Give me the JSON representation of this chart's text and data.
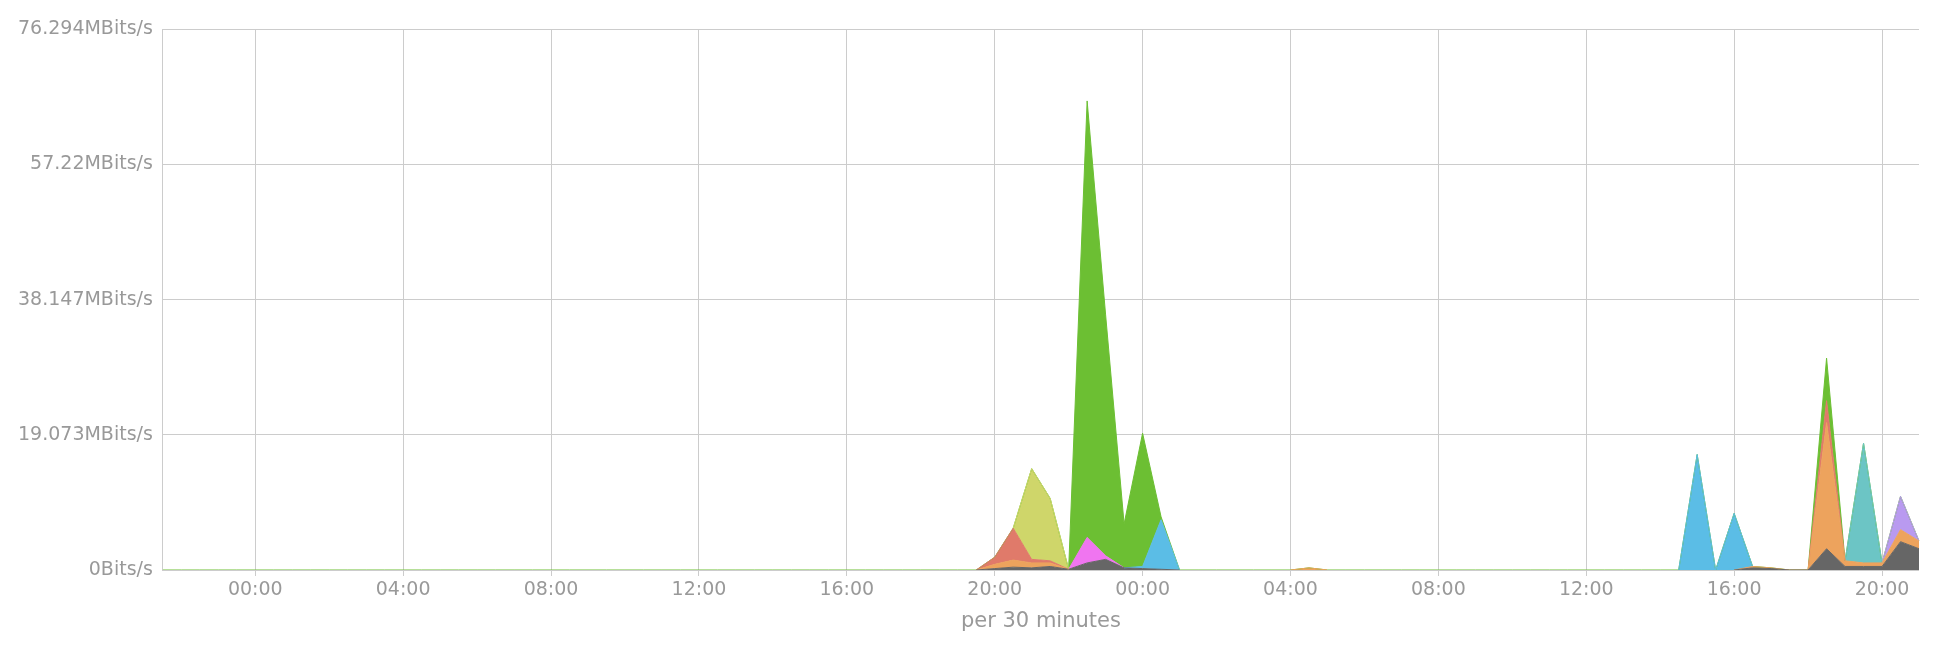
{
  "chart_data": {
    "type": "area",
    "stacked": true,
    "xlabel": "per 30 minutes",
    "categories": [
      null,
      null,
      null,
      null,
      null,
      "00:00",
      null,
      null,
      null,
      null,
      null,
      null,
      null,
      "04:00",
      null,
      null,
      null,
      null,
      null,
      null,
      null,
      "08:00",
      null,
      null,
      null,
      null,
      null,
      null,
      null,
      "12:00",
      null,
      null,
      null,
      null,
      null,
      null,
      null,
      "16:00",
      null,
      null,
      null,
      null,
      null,
      null,
      null,
      "20:00",
      null,
      null,
      null,
      null,
      null,
      null,
      null,
      "00:00",
      null,
      null,
      null,
      null,
      null,
      null,
      null,
      "04:00",
      null,
      null,
      null,
      null,
      null,
      null,
      null,
      "08:00",
      null,
      null,
      null,
      null,
      null,
      null,
      null,
      "12:00",
      null,
      null,
      null,
      null,
      null,
      null,
      null,
      "16:00",
      null,
      null,
      null,
      null,
      null,
      null,
      null,
      "20:00",
      null,
      null
    ],
    "series": [
      {
        "color": "#666666",
        "values": [
          null,
          null,
          null,
          null,
          null,
          null,
          null,
          null,
          null,
          null,
          null,
          null,
          null,
          null,
          null,
          null,
          null,
          null,
          null,
          null,
          null,
          null,
          null,
          null,
          null,
          null,
          null,
          null,
          null,
          null,
          null,
          null,
          null,
          null,
          null,
          null,
          null,
          null,
          null,
          null,
          null,
          null,
          null,
          null,
          0,
          0.2,
          0.4,
          0.3,
          0.5,
          0.1,
          1.0,
          1.5,
          0.3,
          0.2,
          0.1,
          0,
          null,
          null,
          null,
          null,
          null,
          null,
          null,
          null,
          null,
          null,
          null,
          null,
          null,
          null,
          null,
          null,
          null,
          null,
          null,
          null,
          null,
          null,
          null,
          null,
          null,
          null,
          null,
          null,
          null,
          0,
          0.3,
          0.2,
          0,
          0,
          3.0,
          0.5,
          0.5,
          0.5,
          4.0,
          3.0
        ]
      },
      {
        "color": "#eda35d",
        "values": [
          null,
          null,
          null,
          null,
          null,
          null,
          null,
          null,
          null,
          null,
          null,
          null,
          null,
          null,
          null,
          null,
          null,
          null,
          null,
          null,
          null,
          null,
          null,
          null,
          null,
          null,
          null,
          null,
          null,
          null,
          null,
          null,
          null,
          null,
          null,
          null,
          null,
          null,
          null,
          null,
          null,
          null,
          null,
          null,
          0,
          0.6,
          1.0,
          0.7,
          0.5,
          0,
          null,
          null,
          null,
          null,
          null,
          null,
          null,
          null,
          null,
          null,
          null,
          0,
          0.3,
          0,
          null,
          null,
          null,
          null,
          null,
          null,
          null,
          null,
          null,
          null,
          null,
          null,
          null,
          null,
          null,
          null,
          null,
          null,
          null,
          null,
          null,
          0,
          0.2,
          0.1,
          0,
          0,
          17.8,
          0.8,
          0.5,
          0.5,
          1.7,
          1.1
        ]
      },
      {
        "color": "#e07a6a",
        "values": [
          null,
          null,
          null,
          null,
          null,
          null,
          null,
          null,
          null,
          null,
          null,
          null,
          null,
          null,
          null,
          null,
          null,
          null,
          null,
          null,
          null,
          null,
          null,
          null,
          null,
          null,
          null,
          null,
          null,
          null,
          null,
          null,
          null,
          null,
          null,
          null,
          null,
          null,
          null,
          null,
          null,
          null,
          null,
          null,
          0,
          1.0,
          4.5,
          0.5,
          0.3,
          0,
          null,
          null,
          null,
          null,
          null,
          null,
          null,
          null,
          null,
          null,
          null,
          null,
          null,
          null,
          null,
          null,
          null,
          null,
          null,
          null,
          null,
          null,
          null,
          null,
          null,
          null,
          null,
          null,
          null,
          null,
          null,
          null,
          null,
          null,
          null,
          null,
          null,
          null,
          null,
          0,
          3.1,
          0,
          null,
          null,
          null,
          null
        ]
      },
      {
        "color": "#cfd66a",
        "values": [
          null,
          null,
          null,
          null,
          null,
          null,
          null,
          null,
          null,
          null,
          null,
          null,
          null,
          null,
          null,
          null,
          null,
          null,
          null,
          null,
          null,
          null,
          null,
          null,
          null,
          null,
          null,
          null,
          null,
          null,
          null,
          null,
          null,
          null,
          null,
          null,
          null,
          null,
          null,
          null,
          null,
          null,
          null,
          null,
          null,
          null,
          0,
          12.8,
          8.8,
          0,
          null,
          null,
          null,
          null,
          null,
          null,
          null,
          null,
          null,
          null,
          null,
          null,
          null,
          null,
          null,
          null,
          null,
          null,
          null,
          null,
          null,
          null,
          null,
          null,
          null,
          null,
          null,
          null,
          null,
          null,
          null,
          null,
          null,
          null,
          null,
          null,
          null,
          null,
          null,
          null,
          null,
          null,
          null,
          null,
          null,
          null
        ]
      },
      {
        "color": "#f075f0",
        "values": [
          null,
          null,
          null,
          null,
          null,
          null,
          null,
          null,
          null,
          null,
          null,
          null,
          null,
          null,
          null,
          null,
          null,
          null,
          null,
          null,
          null,
          null,
          null,
          null,
          null,
          null,
          null,
          null,
          null,
          null,
          null,
          null,
          null,
          null,
          null,
          null,
          null,
          null,
          null,
          null,
          null,
          null,
          null,
          null,
          null,
          null,
          null,
          null,
          null,
          0,
          3.6,
          0.5,
          0,
          null,
          null,
          null,
          null,
          null,
          null,
          null,
          null,
          null,
          null,
          null,
          null,
          null,
          null,
          null,
          null,
          null,
          null,
          null,
          null,
          null,
          null,
          null,
          null,
          null,
          null,
          null,
          null,
          null,
          null,
          null,
          null,
          null,
          null,
          null,
          null,
          null,
          null,
          null,
          null,
          null,
          null,
          null
        ]
      },
      {
        "color": "#5bbde6",
        "values": [
          null,
          null,
          null,
          null,
          null,
          null,
          null,
          null,
          null,
          null,
          null,
          null,
          null,
          null,
          null,
          null,
          null,
          null,
          null,
          null,
          null,
          null,
          null,
          null,
          null,
          null,
          null,
          null,
          null,
          null,
          null,
          null,
          null,
          null,
          null,
          null,
          null,
          null,
          null,
          null,
          null,
          null,
          null,
          null,
          null,
          null,
          null,
          null,
          null,
          null,
          null,
          null,
          0,
          0.3,
          7.0,
          0,
          null,
          null,
          null,
          null,
          null,
          null,
          null,
          null,
          null,
          null,
          null,
          null,
          null,
          null,
          null,
          null,
          null,
          null,
          null,
          null,
          null,
          null,
          null,
          null,
          null,
          null,
          0,
          16.3,
          0,
          8.0,
          0,
          null,
          null,
          null,
          null,
          null,
          null,
          null,
          null,
          null
        ]
      },
      {
        "color": "#6cc5c5",
        "values": [
          null,
          null,
          null,
          null,
          null,
          null,
          null,
          null,
          null,
          null,
          null,
          null,
          null,
          null,
          null,
          null,
          null,
          null,
          null,
          null,
          null,
          null,
          null,
          null,
          null,
          null,
          null,
          null,
          null,
          null,
          null,
          null,
          null,
          null,
          null,
          null,
          null,
          null,
          null,
          null,
          null,
          null,
          null,
          null,
          null,
          null,
          null,
          null,
          null,
          null,
          null,
          null,
          null,
          null,
          null,
          null,
          null,
          null,
          null,
          null,
          null,
          null,
          null,
          null,
          null,
          null,
          null,
          null,
          null,
          null,
          null,
          null,
          null,
          null,
          null,
          null,
          null,
          null,
          null,
          null,
          null,
          null,
          null,
          null,
          null,
          null,
          null,
          null,
          null,
          null,
          null,
          0,
          16.9,
          0,
          null,
          null
        ]
      },
      {
        "color": "#b99af0",
        "values": [
          null,
          null,
          null,
          null,
          null,
          null,
          null,
          null,
          null,
          null,
          null,
          null,
          null,
          null,
          null,
          null,
          null,
          null,
          null,
          null,
          null,
          null,
          null,
          null,
          null,
          null,
          null,
          null,
          null,
          null,
          null,
          null,
          null,
          null,
          null,
          null,
          null,
          null,
          null,
          null,
          null,
          null,
          null,
          null,
          null,
          null,
          null,
          null,
          null,
          null,
          null,
          null,
          null,
          null,
          null,
          null,
          null,
          null,
          null,
          null,
          null,
          null,
          null,
          null,
          null,
          null,
          null,
          null,
          null,
          null,
          null,
          null,
          null,
          null,
          null,
          null,
          null,
          null,
          null,
          null,
          null,
          null,
          null,
          null,
          null,
          null,
          null,
          null,
          null,
          null,
          null,
          null,
          null,
          0,
          4.7,
          0
        ]
      },
      {
        "color": "#6cbf33",
        "values": [
          0,
          0,
          0,
          0,
          0,
          0,
          0,
          0,
          0,
          0,
          0,
          0,
          0,
          0,
          0,
          0,
          0,
          0,
          0,
          0,
          0,
          0,
          0,
          0,
          0,
          0,
          0,
          0,
          0,
          0,
          0,
          0,
          0,
          0,
          0,
          0,
          0,
          0,
          0,
          0,
          0,
          0,
          0,
          0,
          0,
          0,
          0,
          0,
          0,
          0,
          61.6,
          34,
          6.2,
          18.8,
          0.4,
          0,
          0,
          0,
          0,
          0,
          0,
          0,
          0,
          0,
          0,
          0,
          0,
          0,
          0,
          0,
          0,
          0,
          0,
          0,
          0,
          0,
          0,
          0,
          0,
          0,
          0,
          0,
          0,
          0,
          0,
          0,
          0,
          0,
          0,
          0,
          6.0,
          0,
          0,
          0,
          0,
          0
        ]
      }
    ],
    "ylim": [
      0,
      76.294
    ],
    "yticks": [
      {
        "value": 0,
        "label": "0Bits/s"
      },
      {
        "value": 19.073,
        "label": "19.073MBits/s"
      },
      {
        "value": 38.147,
        "label": "38.147MBits/s"
      },
      {
        "value": 57.22,
        "label": "57.22MBits/s"
      },
      {
        "value": 76.294,
        "label": "76.294MBits/s"
      }
    ],
    "grid": true,
    "legend": false,
    "marker": "none",
    "line_style": "solid"
  }
}
